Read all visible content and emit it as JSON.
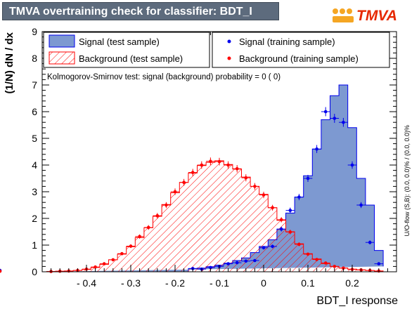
{
  "window": {
    "title": "TMVA overtraining check for classifier: BDT_I",
    "logo_text": "TMVA"
  },
  "chart_data": {
    "type": "histogram",
    "xlabel": "BDT_I response",
    "ylabel": "(1/N) dN / dx",
    "xlim": [
      -0.5,
      0.3
    ],
    "ylim": [
      0,
      9
    ],
    "grid": false,
    "legend_position": "top",
    "x_tick_labels": [
      "- 0.4",
      "- 0.3",
      "- 0.2",
      "- 0.1",
      "0",
      "0.1",
      "0.2"
    ],
    "x_tick_values": [
      -0.4,
      -0.3,
      -0.2,
      -0.1,
      0,
      0.1,
      0.2
    ],
    "y_tick_values": [
      0,
      1,
      2,
      3,
      4,
      5,
      6,
      7,
      8,
      9
    ],
    "ks_text": "Kolmogorov-Smirnov test: signal (background) probability =     0 (    0)",
    "side_text": "U/O-flow (S,B): (0.0, 0.0)% / (0.0, 0.0)%",
    "bin_edges": [
      -0.49,
      -0.47,
      -0.45,
      -0.43,
      -0.41,
      -0.39,
      -0.37,
      -0.35,
      -0.33,
      -0.31,
      -0.29,
      -0.27,
      -0.25,
      -0.23,
      -0.21,
      -0.19,
      -0.17,
      -0.15,
      -0.13,
      -0.11,
      -0.09,
      -0.07,
      -0.05,
      -0.03,
      -0.01,
      0.01,
      0.03,
      0.05,
      0.07,
      0.09,
      0.11,
      0.13,
      0.15,
      0.17,
      0.19,
      0.21,
      0.23,
      0.25,
      0.27
    ],
    "series": [
      {
        "name": "Signal (test sample)",
        "kind": "filled-histogram",
        "color": "#7d99d1",
        "line_color": "#0000ee",
        "values": [
          0,
          0,
          0,
          0,
          0,
          0,
          0,
          0,
          0,
          0,
          0,
          0,
          0,
          0,
          0,
          0,
          0.12,
          0.14,
          0.19,
          0.25,
          0.32,
          0.42,
          0.52,
          0.72,
          0.95,
          1.2,
          1.6,
          2.2,
          2.8,
          3.6,
          4.6,
          5.7,
          6.6,
          7.0,
          5.4,
          3.5,
          2.5,
          0.8,
          0.2
        ]
      },
      {
        "name": "Background (test sample)",
        "kind": "hatched-histogram",
        "color": "#ff0000",
        "values": [
          0.01,
          0.02,
          0.03,
          0.05,
          0.09,
          0.16,
          0.28,
          0.45,
          0.66,
          0.94,
          1.28,
          1.65,
          2.08,
          2.52,
          2.96,
          3.35,
          3.7,
          3.98,
          4.1,
          4.16,
          4.02,
          3.85,
          3.55,
          3.2,
          2.9,
          2.4,
          1.93,
          1.5,
          1.05,
          0.68,
          0.48,
          0.31,
          0.2,
          0.14,
          0.1,
          0.07,
          0.05,
          0.03,
          0.02
        ]
      },
      {
        "name": "Signal (training sample)",
        "kind": "points",
        "color": "#0000ee",
        "values": [
          0,
          0,
          0,
          0,
          0,
          0,
          0,
          0,
          0,
          0,
          0,
          0,
          0,
          0,
          0,
          0,
          0.12,
          0.1,
          0.16,
          0.2,
          0.3,
          0.34,
          0.4,
          0.42,
          0.9,
          0.95,
          1.6,
          2.3,
          2.8,
          3.5,
          4.6,
          6.0,
          5.75,
          5.6,
          4.0,
          2.5,
          1.1,
          0.3,
          0.05
        ]
      },
      {
        "name": "Background (training sample)",
        "kind": "points",
        "color": "#ff0000",
        "values": [
          0.01,
          0.02,
          0.03,
          0.05,
          0.1,
          0.18,
          0.3,
          0.45,
          0.68,
          0.96,
          1.32,
          1.66,
          2.1,
          2.5,
          3.0,
          3.35,
          3.72,
          4.0,
          4.14,
          4.13,
          4.0,
          3.86,
          3.52,
          3.2,
          2.88,
          2.4,
          1.95,
          1.49,
          1.03,
          0.66,
          0.46,
          0.33,
          0.2,
          0.14,
          0.09,
          0.07,
          0.05,
          0.03,
          0.02
        ]
      }
    ]
  }
}
